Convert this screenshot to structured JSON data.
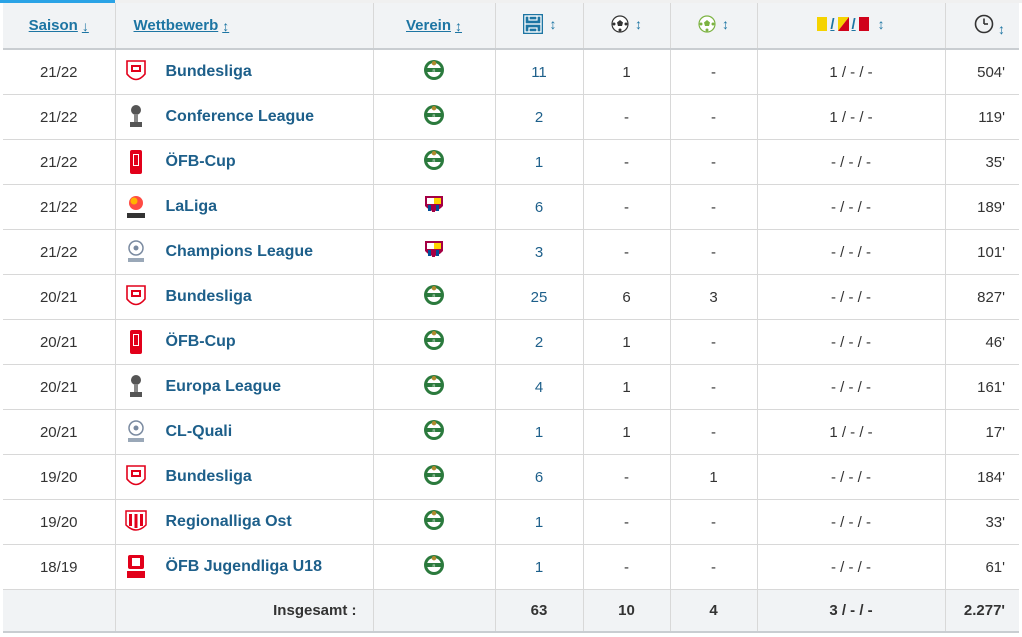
{
  "headers": {
    "saison": "Saison",
    "saison_arrow": "↓",
    "wettbewerb": "Wettbewerb",
    "verein": "Verein",
    "sort_arrow": "↕",
    "cards_sep": "/"
  },
  "rows": [
    {
      "season": "21/22",
      "competition": "Bundesliga",
      "club": "rapid",
      "apps": "11",
      "goals": "1",
      "assists": "-",
      "cards": "1 / - / -",
      "minutes": "504'"
    },
    {
      "season": "21/22",
      "competition": "Conference League",
      "club": "rapid",
      "apps": "2",
      "goals": "-",
      "assists": "-",
      "cards": "1 / - / -",
      "minutes": "119'"
    },
    {
      "season": "21/22",
      "competition": "ÖFB-Cup",
      "club": "rapid",
      "apps": "1",
      "goals": "-",
      "assists": "-",
      "cards": "- / - / -",
      "minutes": "35'"
    },
    {
      "season": "21/22",
      "competition": "LaLiga",
      "club": "barcelona",
      "apps": "6",
      "goals": "-",
      "assists": "-",
      "cards": "- / - / -",
      "minutes": "189'"
    },
    {
      "season": "21/22",
      "competition": "Champions League",
      "club": "barcelona",
      "apps": "3",
      "goals": "-",
      "assists": "-",
      "cards": "- / - / -",
      "minutes": "101'"
    },
    {
      "season": "20/21",
      "competition": "Bundesliga",
      "club": "rapid",
      "apps": "25",
      "goals": "6",
      "assists": "3",
      "cards": "- / - / -",
      "minutes": "827'"
    },
    {
      "season": "20/21",
      "competition": "ÖFB-Cup",
      "club": "rapid",
      "apps": "2",
      "goals": "1",
      "assists": "-",
      "cards": "- / - / -",
      "minutes": "46'"
    },
    {
      "season": "20/21",
      "competition": "Europa League",
      "club": "rapid",
      "apps": "4",
      "goals": "1",
      "assists": "-",
      "cards": "- / - / -",
      "minutes": "161'"
    },
    {
      "season": "20/21",
      "competition": "CL-Quali",
      "club": "rapid",
      "apps": "1",
      "goals": "1",
      "assists": "-",
      "cards": "1 / - / -",
      "minutes": "17'"
    },
    {
      "season": "19/20",
      "competition": "Bundesliga",
      "club": "rapid",
      "apps": "6",
      "goals": "-",
      "assists": "1",
      "cards": "- / - / -",
      "minutes": "184'"
    },
    {
      "season": "19/20",
      "competition": "Regionalliga Ost",
      "club": "rapid",
      "apps": "1",
      "goals": "-",
      "assists": "-",
      "cards": "- / - / -",
      "minutes": "33'"
    },
    {
      "season": "18/19",
      "competition": "ÖFB Jugendliga U18",
      "club": "rapid",
      "apps": "1",
      "goals": "-",
      "assists": "-",
      "cards": "- / - / -",
      "minutes": "61'"
    }
  ],
  "totals": {
    "label": "Insgesamt :",
    "apps": "63",
    "goals": "10",
    "assists": "4",
    "cards": "3 / - / -",
    "minutes": "2.277'"
  },
  "colors": {
    "link": "#1d75a3",
    "header_bg": "#f1f3f5",
    "accent": "#2aa3e6"
  }
}
